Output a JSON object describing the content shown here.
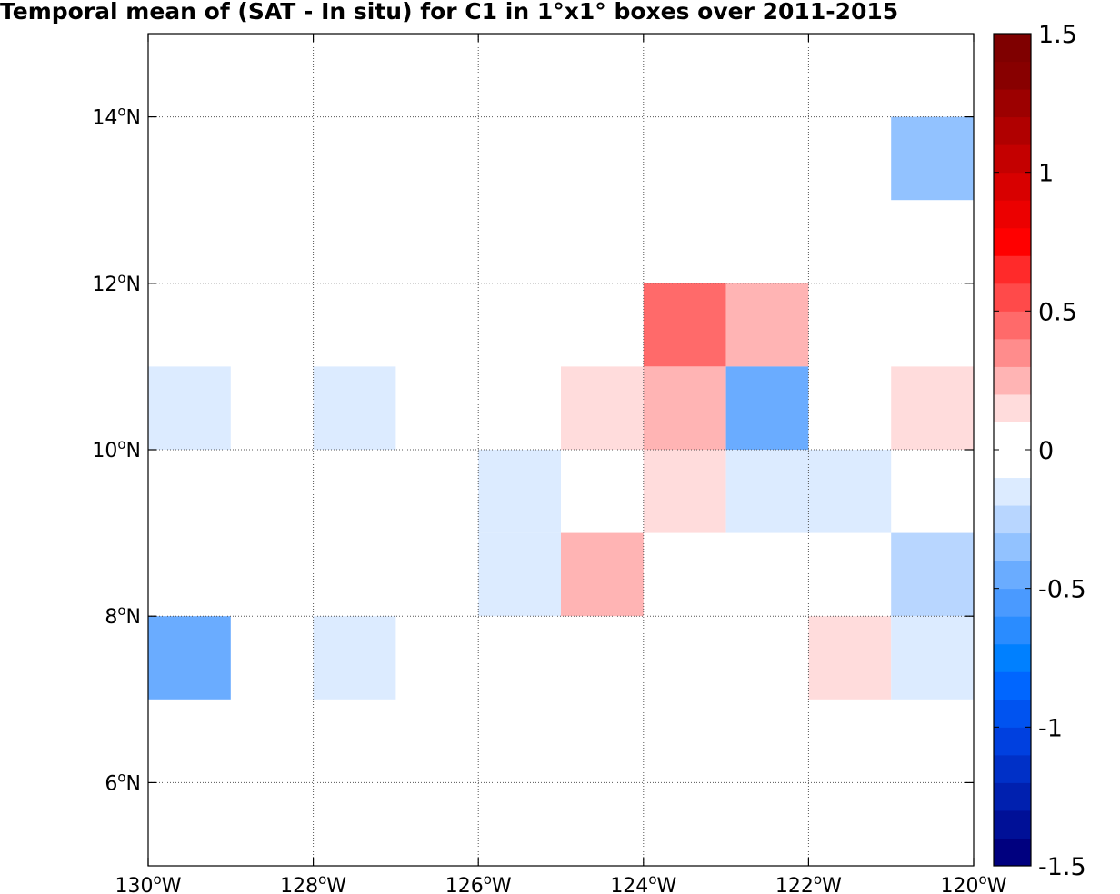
{
  "chart_data": {
    "type": "heatmap",
    "title": "Temporal mean of (SAT - In situ) for C1 in 1°x1° boxes over 2011-2015",
    "xlim": [
      -130,
      -120
    ],
    "ylim": [
      5,
      15
    ],
    "grid": true,
    "x_ticks": [
      {
        "value": -130,
        "deg": "130",
        "sup": "o",
        "hem": "W"
      },
      {
        "value": -128,
        "deg": "128",
        "sup": "o",
        "hem": "W"
      },
      {
        "value": -126,
        "deg": "126",
        "sup": "o",
        "hem": "W"
      },
      {
        "value": -124,
        "deg": "124",
        "sup": "o",
        "hem": "W"
      },
      {
        "value": -122,
        "deg": "122",
        "sup": "o",
        "hem": "W"
      },
      {
        "value": -120,
        "deg": "120",
        "sup": "o",
        "hem": "W"
      }
    ],
    "y_ticks": [
      {
        "value": 6,
        "deg": "6",
        "sup": "o",
        "hem": "N"
      },
      {
        "value": 8,
        "deg": "8",
        "sup": "o",
        "hem": "N"
      },
      {
        "value": 10,
        "deg": "10",
        "sup": "o",
        "hem": "N"
      },
      {
        "value": 12,
        "deg": "12",
        "sup": "o",
        "hem": "N"
      },
      {
        "value": 14,
        "deg": "14",
        "sup": "o",
        "hem": "N"
      }
    ],
    "cells": [
      {
        "lon": -121,
        "lat": 13,
        "value": -0.35
      },
      {
        "lon": -124,
        "lat": 11,
        "value": 0.45
      },
      {
        "lon": -123,
        "lat": 11,
        "value": 0.25
      },
      {
        "lon": -130,
        "lat": 10,
        "value": -0.15
      },
      {
        "lon": -128,
        "lat": 10,
        "value": -0.15
      },
      {
        "lon": -125,
        "lat": 10,
        "value": 0.15
      },
      {
        "lon": -124,
        "lat": 10,
        "value": 0.25
      },
      {
        "lon": -123,
        "lat": 10,
        "value": -0.45
      },
      {
        "lon": -121,
        "lat": 10,
        "value": 0.15
      },
      {
        "lon": -126,
        "lat": 9,
        "value": -0.15
      },
      {
        "lon": -124,
        "lat": 9,
        "value": 0.15
      },
      {
        "lon": -123,
        "lat": 9,
        "value": -0.15
      },
      {
        "lon": -122,
        "lat": 9,
        "value": -0.15
      },
      {
        "lon": -126,
        "lat": 8,
        "value": -0.15
      },
      {
        "lon": -125,
        "lat": 8,
        "value": 0.25
      },
      {
        "lon": -121,
        "lat": 8,
        "value": -0.25
      },
      {
        "lon": -130,
        "lat": 7,
        "value": -0.45
      },
      {
        "lon": -128,
        "lat": 7,
        "value": -0.15
      },
      {
        "lon": -122,
        "lat": 7,
        "value": 0.15
      },
      {
        "lon": -121,
        "lat": 7,
        "value": -0.15
      }
    ],
    "colorbar": {
      "min": -1.5,
      "max": 1.5,
      "step": 0.1,
      "ticks": [
        {
          "value": 1.5,
          "label": "1.5"
        },
        {
          "value": 1,
          "label": "1"
        },
        {
          "value": 0.5,
          "label": "0.5"
        },
        {
          "value": 0,
          "label": "0"
        },
        {
          "value": -0.5,
          "label": "-0.5"
        },
        {
          "value": -1,
          "label": "-1"
        },
        {
          "value": -1.5,
          "label": "-1.5"
        }
      ],
      "colors": [
        "#00007f",
        "#001097",
        "#0020af",
        "#0030c7",
        "#0040df",
        "#0053f0",
        "#0066ff",
        "#0080ff",
        "#2a8cff",
        "#4a9aff",
        "#6aacff",
        "#92c2ff",
        "#b8d6ff",
        "#dcebff",
        "#ffffff",
        "#ffffff",
        "#ffdcdc",
        "#ffb4b4",
        "#ff8c8c",
        "#ff6a6a",
        "#ff4a4a",
        "#ff2a2a",
        "#ff0000",
        "#ec0000",
        "#d80000",
        "#c40000",
        "#b00000",
        "#9c0000",
        "#880000",
        "#7f0000"
      ]
    }
  }
}
